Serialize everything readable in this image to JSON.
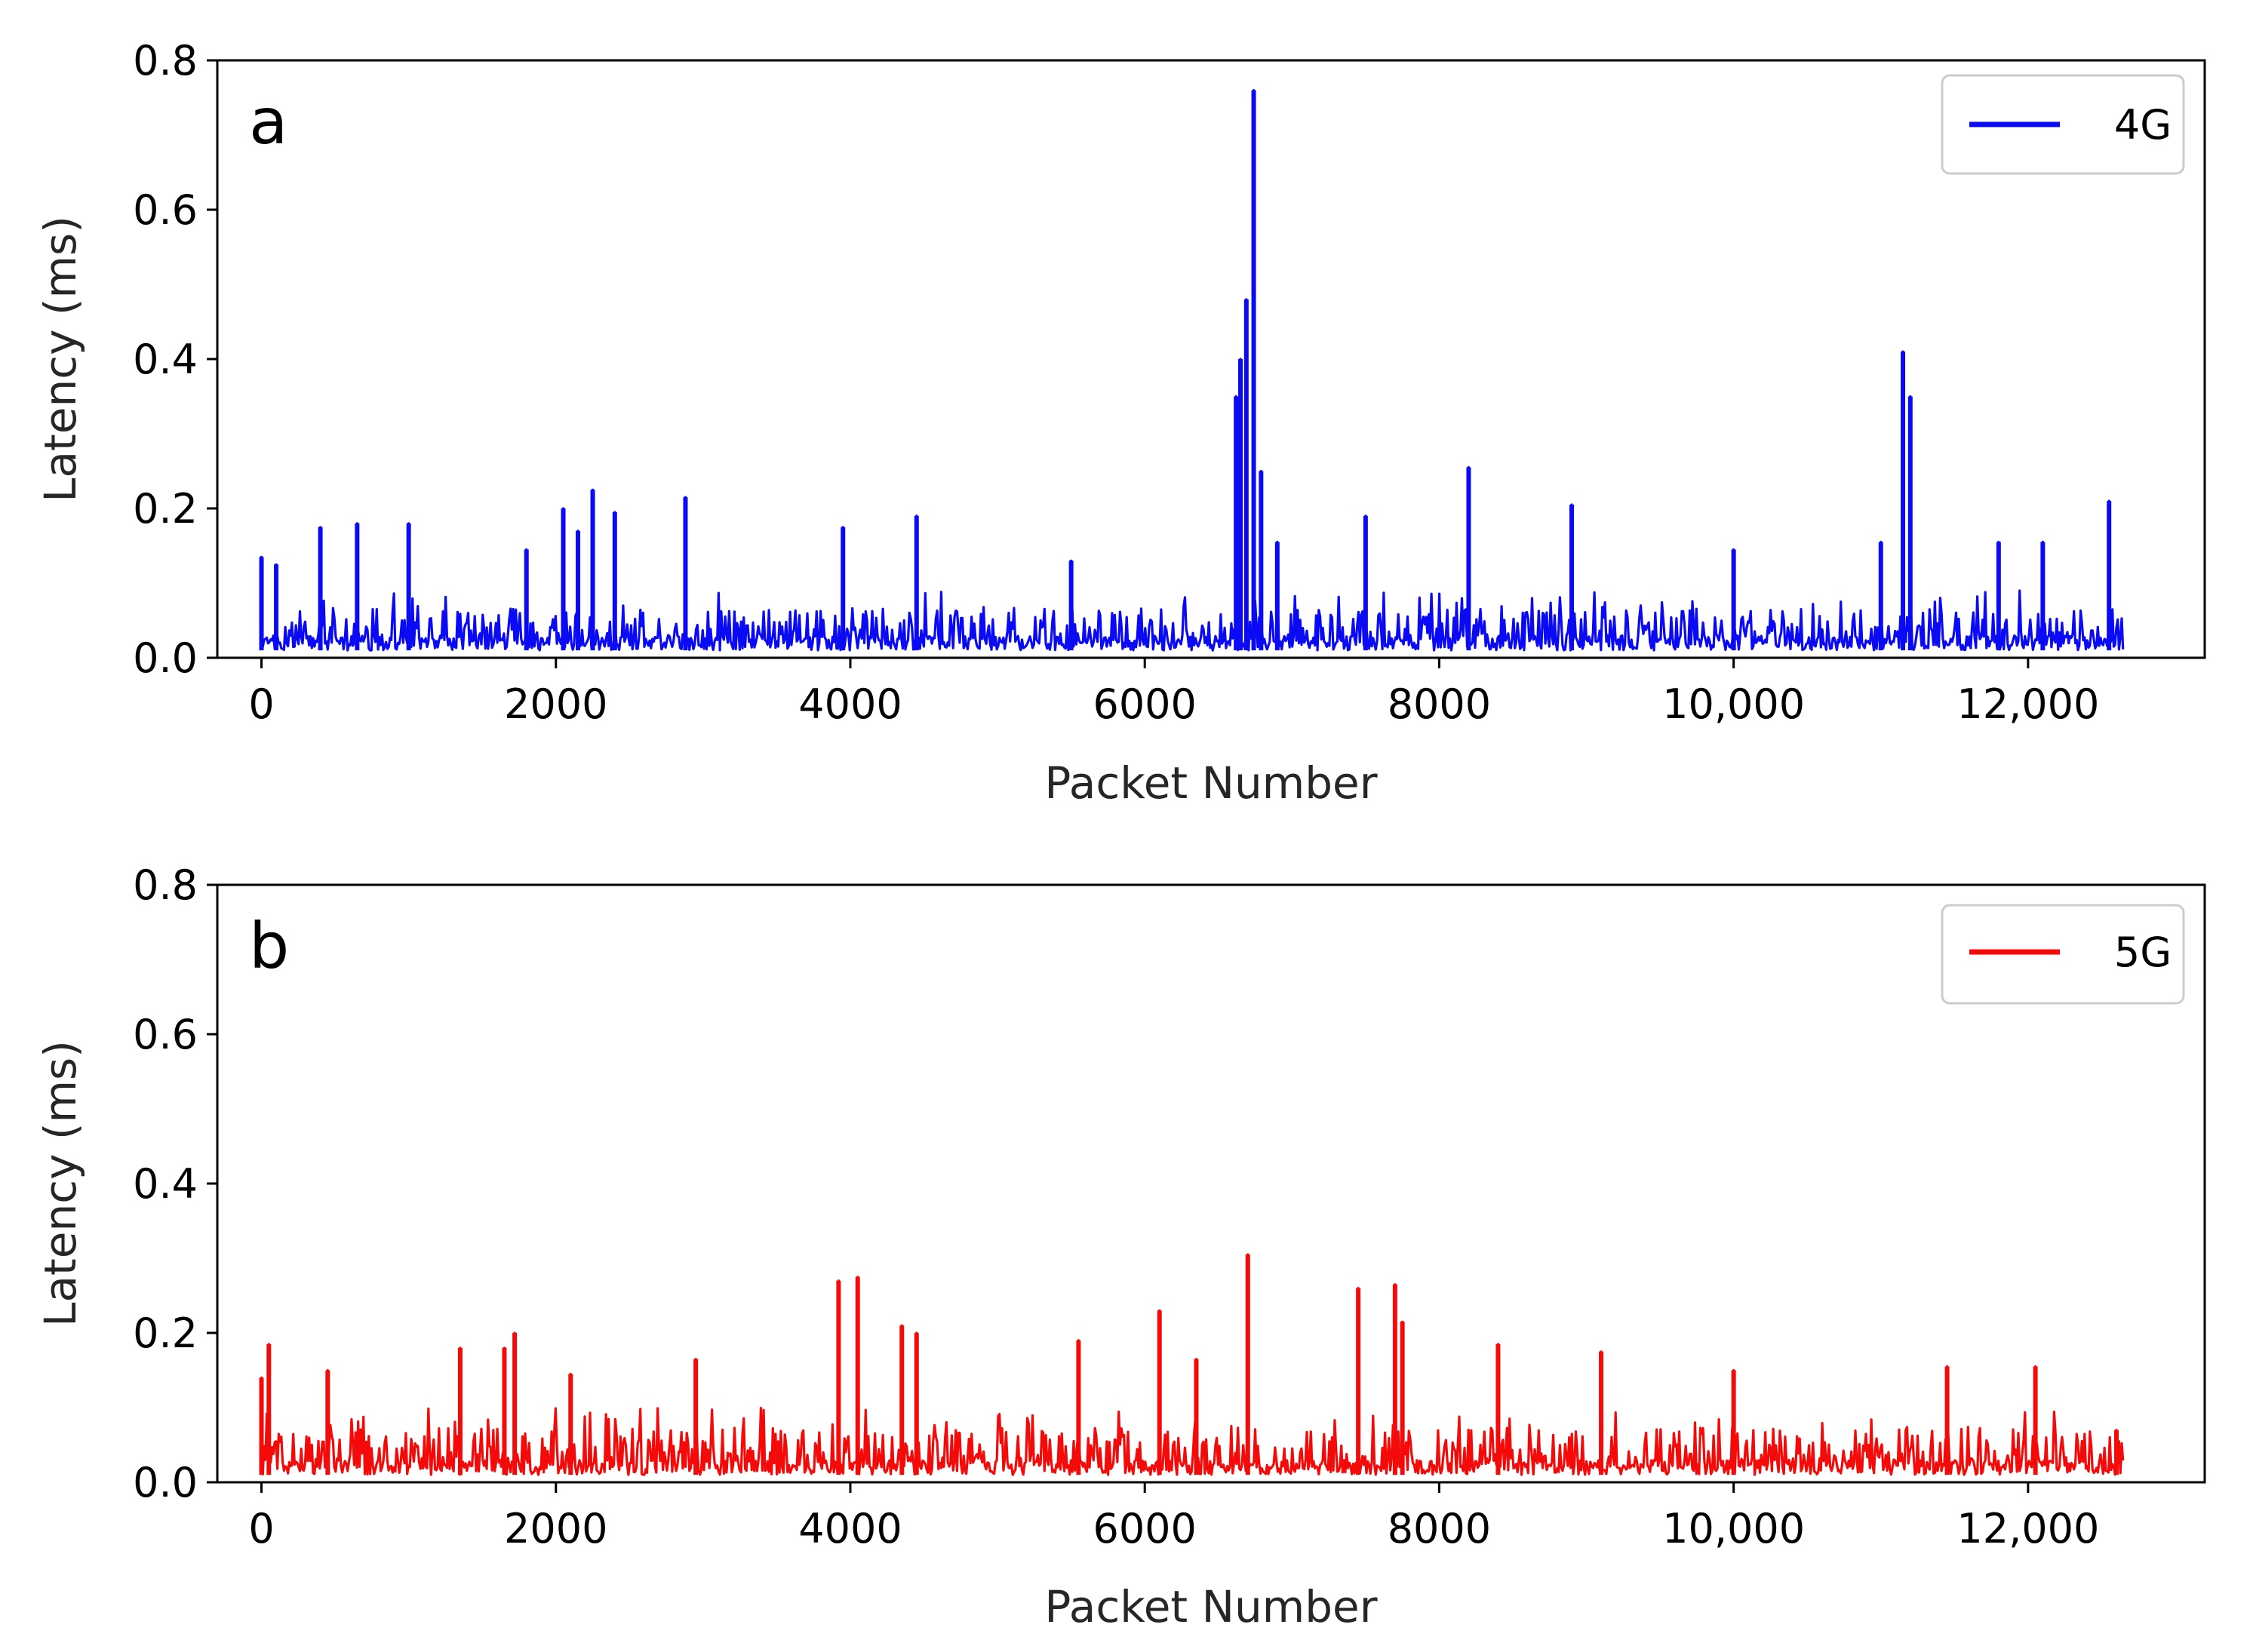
{
  "chart_data": [
    {
      "type": "line",
      "panel_label": "a",
      "xlabel": "Packet Number",
      "ylabel": "Latency (ms)",
      "xlim": [
        -300,
        13200
      ],
      "ylim": [
        0,
        0.8
      ],
      "x_ticks": [
        0,
        2000,
        4000,
        6000,
        8000,
        10000,
        12000
      ],
      "x_tick_labels": [
        "0",
        "2000",
        "4000",
        "6000",
        "8000",
        "10,000",
        "12,000"
      ],
      "y_ticks": [
        0.0,
        0.2,
        0.4,
        0.6,
        0.8
      ],
      "y_tick_labels": [
        "0.0",
        "0.2",
        "0.4",
        "0.6",
        "0.8"
      ],
      "grid": false,
      "legend_position": "top-right",
      "series": [
        {
          "name": "4G",
          "color": "#0a0af5",
          "x_start": 0,
          "x_end": 12650,
          "baseline_min": 0.01,
          "typical_max": 0.09,
          "peaks": [
            {
              "x": 0,
              "y": 0.135
            },
            {
              "x": 100,
              "y": 0.125
            },
            {
              "x": 400,
              "y": 0.175
            },
            {
              "x": 650,
              "y": 0.18
            },
            {
              "x": 1000,
              "y": 0.18
            },
            {
              "x": 1800,
              "y": 0.145
            },
            {
              "x": 2050,
              "y": 0.2
            },
            {
              "x": 2150,
              "y": 0.17
            },
            {
              "x": 2250,
              "y": 0.225
            },
            {
              "x": 2400,
              "y": 0.195
            },
            {
              "x": 2880,
              "y": 0.215
            },
            {
              "x": 3950,
              "y": 0.175
            },
            {
              "x": 4450,
              "y": 0.19
            },
            {
              "x": 5500,
              "y": 0.13
            },
            {
              "x": 6620,
              "y": 0.35
            },
            {
              "x": 6650,
              "y": 0.4
            },
            {
              "x": 6690,
              "y": 0.48
            },
            {
              "x": 6740,
              "y": 0.76
            },
            {
              "x": 6790,
              "y": 0.25
            },
            {
              "x": 6900,
              "y": 0.155
            },
            {
              "x": 7500,
              "y": 0.19
            },
            {
              "x": 8200,
              "y": 0.255
            },
            {
              "x": 8900,
              "y": 0.205
            },
            {
              "x": 10000,
              "y": 0.145
            },
            {
              "x": 11000,
              "y": 0.155
            },
            {
              "x": 11150,
              "y": 0.41
            },
            {
              "x": 11200,
              "y": 0.35
            },
            {
              "x": 11800,
              "y": 0.155
            },
            {
              "x": 12100,
              "y": 0.155
            },
            {
              "x": 12550,
              "y": 0.21
            }
          ]
        }
      ]
    },
    {
      "type": "line",
      "panel_label": "b",
      "xlabel": "Packet Number",
      "ylabel": "Latency (ms)",
      "xlim": [
        -300,
        13200
      ],
      "ylim": [
        0,
        0.8
      ],
      "x_ticks": [
        0,
        2000,
        4000,
        6000,
        8000,
        10000,
        12000
      ],
      "x_tick_labels": [
        "0",
        "2000",
        "4000",
        "6000",
        "8000",
        "10,000",
        "12,000"
      ],
      "y_ticks": [
        0.0,
        0.2,
        0.4,
        0.6,
        0.8
      ],
      "y_tick_labels": [
        "0.0",
        "0.2",
        "0.4",
        "0.6",
        "0.8"
      ],
      "grid": false,
      "legend_position": "top-right",
      "series": [
        {
          "name": "5G",
          "color": "#f50a0a",
          "x_start": 0,
          "x_end": 12650,
          "baseline_min": 0.01,
          "typical_max": 0.1,
          "peaks": [
            {
              "x": 0,
              "y": 0.14
            },
            {
              "x": 50,
              "y": 0.185
            },
            {
              "x": 450,
              "y": 0.15
            },
            {
              "x": 1350,
              "y": 0.18
            },
            {
              "x": 1650,
              "y": 0.18
            },
            {
              "x": 1720,
              "y": 0.2
            },
            {
              "x": 2100,
              "y": 0.145
            },
            {
              "x": 2950,
              "y": 0.165
            },
            {
              "x": 3920,
              "y": 0.27
            },
            {
              "x": 4050,
              "y": 0.275
            },
            {
              "x": 4350,
              "y": 0.21
            },
            {
              "x": 4450,
              "y": 0.2
            },
            {
              "x": 5550,
              "y": 0.19
            },
            {
              "x": 6100,
              "y": 0.23
            },
            {
              "x": 6350,
              "y": 0.165
            },
            {
              "x": 6700,
              "y": 0.305
            },
            {
              "x": 7450,
              "y": 0.26
            },
            {
              "x": 7700,
              "y": 0.265
            },
            {
              "x": 7750,
              "y": 0.215
            },
            {
              "x": 8400,
              "y": 0.185
            },
            {
              "x": 9100,
              "y": 0.175
            },
            {
              "x": 10000,
              "y": 0.15
            },
            {
              "x": 11450,
              "y": 0.155
            },
            {
              "x": 12050,
              "y": 0.155
            },
            {
              "x": 12600,
              "y": 0.07
            }
          ]
        }
      ]
    }
  ]
}
